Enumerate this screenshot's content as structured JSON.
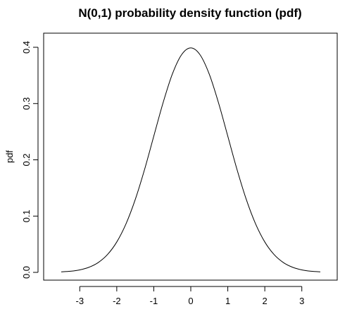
{
  "chart_data": {
    "type": "line",
    "title": "N(0,1) probability density function (pdf)",
    "xlabel": "",
    "ylabel": "pdf",
    "xlim": [
      -3.5,
      3.5
    ],
    "ylim": [
      0.0,
      0.4
    ],
    "x_ticks": [
      -3,
      -2,
      -1,
      0,
      1,
      2,
      3
    ],
    "x_tick_labels": [
      "-3",
      "-2",
      "-1",
      "0",
      "1",
      "2",
      "3"
    ],
    "y_ticks": [
      0.0,
      0.1,
      0.2,
      0.3,
      0.4
    ],
    "y_tick_labels": [
      "0.0",
      "0.1",
      "0.2",
      "0.3",
      "0.4"
    ],
    "grid": false,
    "series": [
      {
        "x": [
          -3.5,
          -3.25,
          -3.0,
          -2.75,
          -2.5,
          -2.25,
          -2.0,
          -1.75,
          -1.5,
          -1.25,
          -1.0,
          -0.75,
          -0.5,
          -0.25,
          0.0,
          0.25,
          0.5,
          0.75,
          1.0,
          1.25,
          1.5,
          1.75,
          2.0,
          2.25,
          2.5,
          2.75,
          3.0,
          3.25,
          3.5
        ],
        "y": [
          0.0009,
          0.002,
          0.0044,
          0.0091,
          0.0175,
          0.0317,
          0.054,
          0.0863,
          0.1295,
          0.1826,
          0.242,
          0.3011,
          0.3521,
          0.3867,
          0.3989,
          0.3867,
          0.3521,
          0.3011,
          0.242,
          0.1826,
          0.1295,
          0.0863,
          0.054,
          0.0317,
          0.0175,
          0.0091,
          0.0044,
          0.002,
          0.0009
        ],
        "color": "#000000"
      }
    ]
  }
}
